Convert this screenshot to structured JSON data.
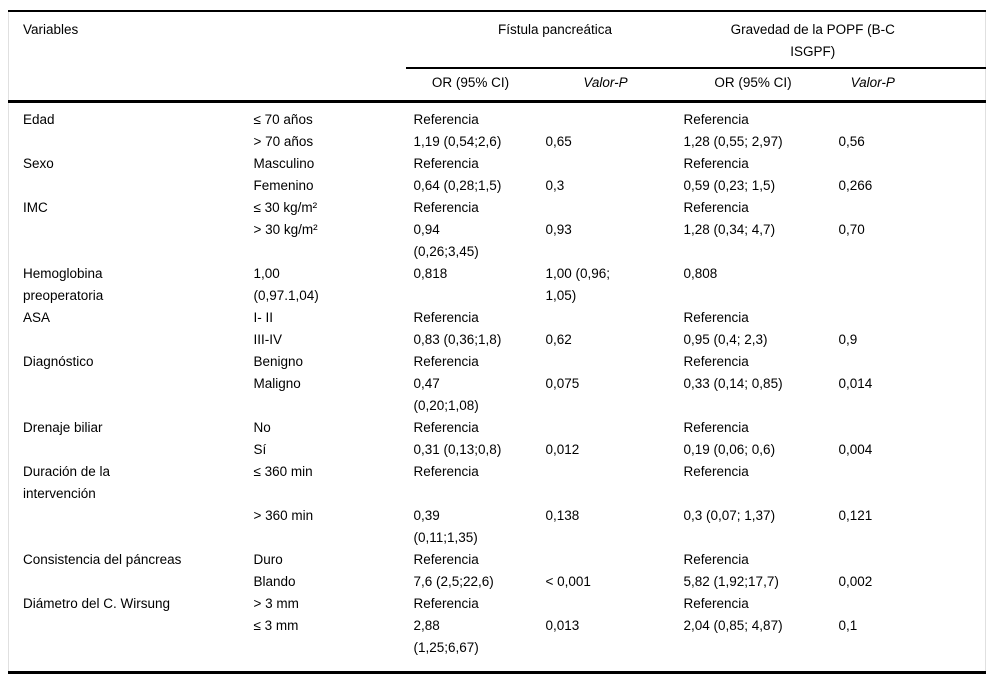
{
  "colors": {
    "background": "#ffffff",
    "text": "#000000",
    "rules": "#000000",
    "side_frame": "#e0e0e0"
  },
  "table": {
    "header": {
      "variables_label": "Variables",
      "group1_label": "Fístula pancreática",
      "group2_label": "Gravedad de la POPF (B-C\nISGPF)",
      "or_label_1": "OR (95% CI)",
      "p_label_1": "Valor-P",
      "or_label_2": "OR (95% CI)",
      "p_label_2": "Valor-P"
    },
    "rows": [
      {
        "var": "Edad",
        "cat": "≤ 70 años",
        "or1": "Referencia",
        "p1": "",
        "or2": "Referencia",
        "p2": ""
      },
      {
        "var": "",
        "cat": "> 70 años",
        "or1": "1,19 (0,54;2,6)",
        "p1": "0,65",
        "or2": "1,28 (0,55; 2,97)",
        "p2": "0,56"
      },
      {
        "var": "Sexo",
        "cat": "Masculino",
        "or1": "Referencia",
        "p1": "",
        "or2": "Referencia",
        "p2": ""
      },
      {
        "var": "",
        "cat": "Femenino",
        "or1": "0,64 (0,28;1,5)",
        "p1": "0,3",
        "or2": "0,59 (0,23; 1,5)",
        "p2": "0,266"
      },
      {
        "var": "IMC",
        "cat": "≤ 30 kg/m²",
        "or1": "Referencia",
        "p1": "",
        "or2": "Referencia",
        "p2": ""
      },
      {
        "var": "",
        "cat": "> 30 kg/m²",
        "or1": "0,94\n(0,26;3,45)",
        "p1": "0,93",
        "or2": "1,28 (0,34; 4,7)",
        "p2": "0,70"
      },
      {
        "var": "Hemoglobina\npreoperatoria",
        "cat": "1,00\n(0,97.1,04)",
        "or1": "0,818",
        "p1": "1,00 (0,96;\n1,05)",
        "or2": "0,808",
        "p2": ""
      },
      {
        "var": "ASA",
        "cat": "I- II",
        "or1": "Referencia",
        "p1": "",
        "or2": "Referencia",
        "p2": ""
      },
      {
        "var": "",
        "cat": "III-IV",
        "or1": "0,83 (0,36;1,8)",
        "p1": "0,62",
        "or2": "0,95 (0,4; 2,3)",
        "p2": "0,9"
      },
      {
        "var": "Diagnóstico",
        "cat": "Benigno",
        "or1": "Referencia",
        "p1": "",
        "or2": "Referencia",
        "p2": ""
      },
      {
        "var": "",
        "cat": "Maligno",
        "or1": "0,47\n(0,20;1,08)",
        "p1": "0,075",
        "or2": "0,33 (0,14; 0,85)",
        "p2": "0,014"
      },
      {
        "var": "Drenaje biliar",
        "cat": "No",
        "or1": "Referencia",
        "p1": "",
        "or2": "Referencia",
        "p2": ""
      },
      {
        "var": "",
        "cat": "Sí",
        "or1": "0,31 (0,13;0,8)",
        "p1": "0,012",
        "or2": "0,19 (0,06; 0,6)",
        "p2": "0,004"
      },
      {
        "var": "Duración de la\nintervención",
        "cat": "≤ 360 min",
        "or1": "Referencia",
        "p1": "",
        "or2": "Referencia",
        "p2": ""
      },
      {
        "var": "",
        "cat": "> 360 min",
        "or1": "0,39\n(0,11;1,35)",
        "p1": "0,138",
        "or2": "0,3 (0,07; 1,37)",
        "p2": "0,121"
      },
      {
        "var": "Consistencia del páncreas",
        "cat": "Duro",
        "or1": "Referencia",
        "p1": "",
        "or2": "Referencia",
        "p2": ""
      },
      {
        "var": "",
        "cat": "Blando",
        "or1": "7,6 (2,5;22,6)",
        "p1": "< 0,001",
        "or2": "5,82 (1,92;17,7)",
        "p2": "0,002"
      },
      {
        "var": "Diámetro del C. Wirsung",
        "cat": "> 3 mm",
        "or1": "Referencia",
        "p1": "",
        "or2": "Referencia",
        "p2": ""
      },
      {
        "var": "",
        "cat": "≤ 3 mm",
        "or1": "2,88\n(1,25;6,67)",
        "p1": "0,013",
        "or2": "2,04 (0,85; 4,87)",
        "p2": "0,1"
      }
    ]
  }
}
